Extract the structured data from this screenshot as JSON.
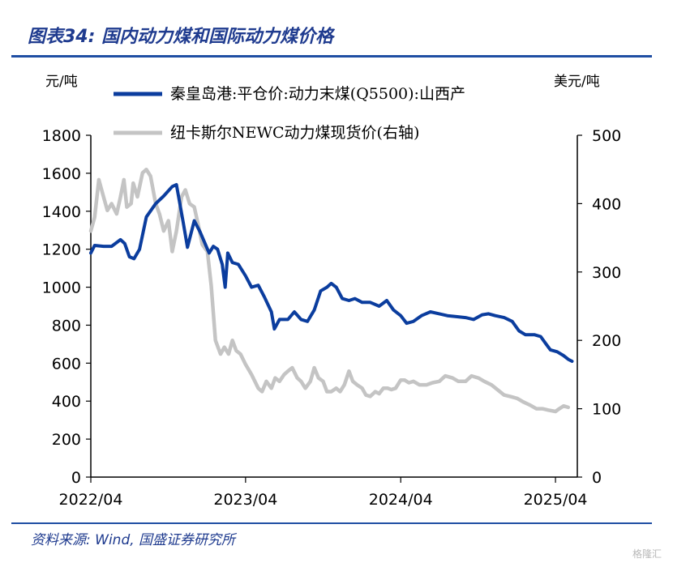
{
  "header": {
    "title": "图表34:  国内动力煤和国际动力煤价格"
  },
  "footer": {
    "source": "资料来源:  Wind, 国盛证券研究所",
    "watermark": "格隆汇"
  },
  "chart_data": {
    "type": "line",
    "left_unit": "元/吨",
    "right_unit": "美元/吨",
    "x_ticks": [
      "2022/04",
      "2023/04",
      "2024/04",
      "2025/04"
    ],
    "y_left_ticks": [
      "0",
      "200",
      "400",
      "600",
      "800",
      "1000",
      "1200",
      "1400",
      "1600",
      "1800"
    ],
    "y_right_ticks": [
      "0",
      "100",
      "200",
      "300",
      "400",
      "500"
    ],
    "ylim_left": [
      0,
      1800
    ],
    "ylim_right": [
      0,
      500
    ],
    "grid": false,
    "legend_position": "top",
    "series": [
      {
        "name": "秦皇岛港:平仓价:动力末煤(Q5500):山西产",
        "axis": "left",
        "color": "#0b3d9e",
        "points": [
          [
            "2022-04-01",
            1180
          ],
          [
            "2022-04-10",
            1220
          ],
          [
            "2022-05-01",
            1215
          ],
          [
            "2022-05-20",
            1215
          ],
          [
            "2022-06-10",
            1250
          ],
          [
            "2022-06-20",
            1230
          ],
          [
            "2022-07-01",
            1160
          ],
          [
            "2022-07-12",
            1150
          ],
          [
            "2022-07-25",
            1200
          ],
          [
            "2022-08-10",
            1370
          ],
          [
            "2022-09-01",
            1440
          ],
          [
            "2022-09-20",
            1480
          ],
          [
            "2022-10-10",
            1530
          ],
          [
            "2022-10-20",
            1540
          ],
          [
            "2022-11-05",
            1340
          ],
          [
            "2022-11-15",
            1210
          ],
          [
            "2022-12-01",
            1350
          ],
          [
            "2022-12-15",
            1290
          ],
          [
            "2023-01-05",
            1180
          ],
          [
            "2023-01-15",
            1215
          ],
          [
            "2023-01-25",
            1200
          ],
          [
            "2023-02-05",
            1120
          ],
          [
            "2023-02-12",
            1000
          ],
          [
            "2023-02-18",
            1180
          ],
          [
            "2023-03-01",
            1130
          ],
          [
            "2023-03-15",
            1120
          ],
          [
            "2023-04-01",
            1060
          ],
          [
            "2023-04-15",
            1000
          ],
          [
            "2023-05-01",
            1010
          ],
          [
            "2023-05-15",
            950
          ],
          [
            "2023-06-01",
            870
          ],
          [
            "2023-06-08",
            780
          ],
          [
            "2023-06-20",
            830
          ],
          [
            "2023-07-10",
            830
          ],
          [
            "2023-07-25",
            870
          ],
          [
            "2023-08-10",
            830
          ],
          [
            "2023-08-25",
            820
          ],
          [
            "2023-09-10",
            880
          ],
          [
            "2023-09-25",
            980
          ],
          [
            "2023-10-10",
            1000
          ],
          [
            "2023-10-20",
            1020
          ],
          [
            "2023-11-01",
            1000
          ],
          [
            "2023-11-15",
            940
          ],
          [
            "2023-12-01",
            930
          ],
          [
            "2023-12-15",
            940
          ],
          [
            "2024-01-01",
            920
          ],
          [
            "2024-01-20",
            920
          ],
          [
            "2024-02-10",
            900
          ],
          [
            "2024-02-28",
            930
          ],
          [
            "2024-03-15",
            880
          ],
          [
            "2024-04-01",
            850
          ],
          [
            "2024-04-15",
            810
          ],
          [
            "2024-05-01",
            820
          ],
          [
            "2024-05-20",
            850
          ],
          [
            "2024-06-10",
            870
          ],
          [
            "2024-07-01",
            860
          ],
          [
            "2024-07-20",
            850
          ],
          [
            "2024-08-10",
            845
          ],
          [
            "2024-09-01",
            840
          ],
          [
            "2024-09-20",
            830
          ],
          [
            "2024-10-10",
            855
          ],
          [
            "2024-10-25",
            860
          ],
          [
            "2024-11-10",
            850
          ],
          [
            "2024-12-01",
            840
          ],
          [
            "2024-12-20",
            820
          ],
          [
            "2025-01-05",
            770
          ],
          [
            "2025-01-20",
            750
          ],
          [
            "2025-02-10",
            750
          ],
          [
            "2025-02-25",
            740
          ],
          [
            "2025-03-10",
            700
          ],
          [
            "2025-03-20",
            670
          ],
          [
            "2025-04-05",
            660
          ],
          [
            "2025-04-20",
            640
          ],
          [
            "2025-05-01",
            620
          ],
          [
            "2025-05-10",
            610
          ]
        ]
      },
      {
        "name": "纽卡斯尔NEWC动力煤现货价(右轴)",
        "axis": "right",
        "color": "#c4c4c4",
        "points": [
          [
            "2022-04-01",
            360
          ],
          [
            "2022-04-10",
            380
          ],
          [
            "2022-04-20",
            435
          ],
          [
            "2022-05-01",
            410
          ],
          [
            "2022-05-10",
            390
          ],
          [
            "2022-05-20",
            400
          ],
          [
            "2022-06-01",
            385
          ],
          [
            "2022-06-10",
            410
          ],
          [
            "2022-06-18",
            435
          ],
          [
            "2022-06-25",
            395
          ],
          [
            "2022-07-05",
            400
          ],
          [
            "2022-07-10",
            430
          ],
          [
            "2022-07-20",
            410
          ],
          [
            "2022-08-01",
            445
          ],
          [
            "2022-08-10",
            450
          ],
          [
            "2022-08-20",
            440
          ],
          [
            "2022-09-01",
            400
          ],
          [
            "2022-09-10",
            385
          ],
          [
            "2022-09-20",
            360
          ],
          [
            "2022-10-01",
            375
          ],
          [
            "2022-10-10",
            330
          ],
          [
            "2022-10-20",
            360
          ],
          [
            "2022-11-01",
            410
          ],
          [
            "2022-11-10",
            420
          ],
          [
            "2022-11-20",
            400
          ],
          [
            "2022-12-01",
            395
          ],
          [
            "2022-12-10",
            370
          ],
          [
            "2022-12-20",
            340
          ],
          [
            "2023-01-01",
            330
          ],
          [
            "2023-01-10",
            280
          ],
          [
            "2023-01-20",
            200
          ],
          [
            "2023-02-01",
            180
          ],
          [
            "2023-02-10",
            190
          ],
          [
            "2023-02-20",
            180
          ],
          [
            "2023-03-01",
            200
          ],
          [
            "2023-03-10",
            185
          ],
          [
            "2023-03-20",
            180
          ],
          [
            "2023-04-01",
            165
          ],
          [
            "2023-04-15",
            150
          ],
          [
            "2023-05-01",
            130
          ],
          [
            "2023-05-10",
            125
          ],
          [
            "2023-05-20",
            140
          ],
          [
            "2023-06-01",
            130
          ],
          [
            "2023-06-10",
            145
          ],
          [
            "2023-06-20",
            140
          ],
          [
            "2023-07-01",
            150
          ],
          [
            "2023-07-10",
            155
          ],
          [
            "2023-07-20",
            160
          ],
          [
            "2023-08-01",
            145
          ],
          [
            "2023-08-10",
            140
          ],
          [
            "2023-08-20",
            130
          ],
          [
            "2023-09-01",
            140
          ],
          [
            "2023-09-10",
            160
          ],
          [
            "2023-09-20",
            145
          ],
          [
            "2023-10-01",
            140
          ],
          [
            "2023-10-10",
            125
          ],
          [
            "2023-10-20",
            125
          ],
          [
            "2023-11-01",
            130
          ],
          [
            "2023-11-10",
            125
          ],
          [
            "2023-11-20",
            135
          ],
          [
            "2023-12-01",
            155
          ],
          [
            "2023-12-10",
            140
          ],
          [
            "2023-12-20",
            135
          ],
          [
            "2024-01-01",
            130
          ],
          [
            "2024-01-10",
            120
          ],
          [
            "2024-01-20",
            118
          ],
          [
            "2024-02-01",
            125
          ],
          [
            "2024-02-10",
            122
          ],
          [
            "2024-02-20",
            130
          ],
          [
            "2024-03-01",
            130
          ],
          [
            "2024-03-10",
            128
          ],
          [
            "2024-03-20",
            130
          ],
          [
            "2024-04-01",
            142
          ],
          [
            "2024-04-10",
            142
          ],
          [
            "2024-04-20",
            138
          ],
          [
            "2024-05-01",
            140
          ],
          [
            "2024-05-15",
            135
          ],
          [
            "2024-06-01",
            135
          ],
          [
            "2024-06-15",
            138
          ],
          [
            "2024-07-01",
            140
          ],
          [
            "2024-07-15",
            148
          ],
          [
            "2024-08-01",
            145
          ],
          [
            "2024-08-15",
            140
          ],
          [
            "2024-09-01",
            140
          ],
          [
            "2024-09-15",
            148
          ],
          [
            "2024-10-01",
            145
          ],
          [
            "2024-10-15",
            140
          ],
          [
            "2024-11-01",
            135
          ],
          [
            "2024-11-15",
            128
          ],
          [
            "2024-12-01",
            120
          ],
          [
            "2024-12-15",
            118
          ],
          [
            "2025-01-01",
            115
          ],
          [
            "2025-01-15",
            110
          ],
          [
            "2025-02-01",
            105
          ],
          [
            "2025-02-15",
            100
          ],
          [
            "2025-03-01",
            100
          ],
          [
            "2025-03-15",
            98
          ],
          [
            "2025-04-01",
            96
          ],
          [
            "2025-04-10",
            100
          ],
          [
            "2025-04-20",
            104
          ],
          [
            "2025-05-01",
            102
          ]
        ]
      }
    ]
  }
}
